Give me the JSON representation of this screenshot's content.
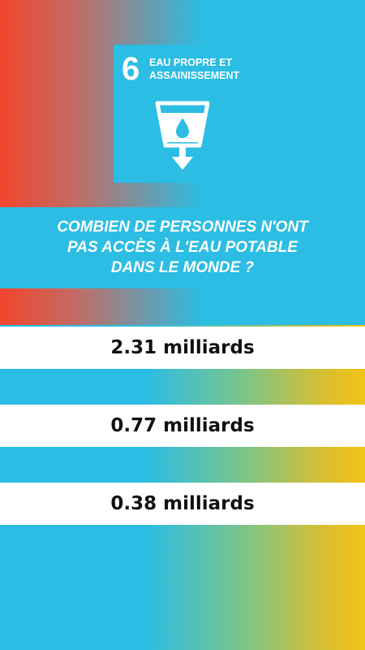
{
  "sdg": {
    "number": "6",
    "title": "EAU PROPRE ET\nASSAINISSEMENT",
    "icon": "water-glass-icon",
    "color": "#2bbde3"
  },
  "question": "COMBIEN DE PERSONNES N'ONT\nPAS ACCÈS À L'EAU POTABLE\nDANS LE MONDE ?",
  "answers": [
    {
      "label": "2.31 milliards"
    },
    {
      "label": "0.77 milliards"
    },
    {
      "label": "0.38 milliards"
    }
  ],
  "colors": {
    "gradient_red": "#f0462d",
    "gradient_blue": "#2bbde3",
    "gradient_yellow": "#f2c318",
    "answer_background": "#ffffff"
  }
}
